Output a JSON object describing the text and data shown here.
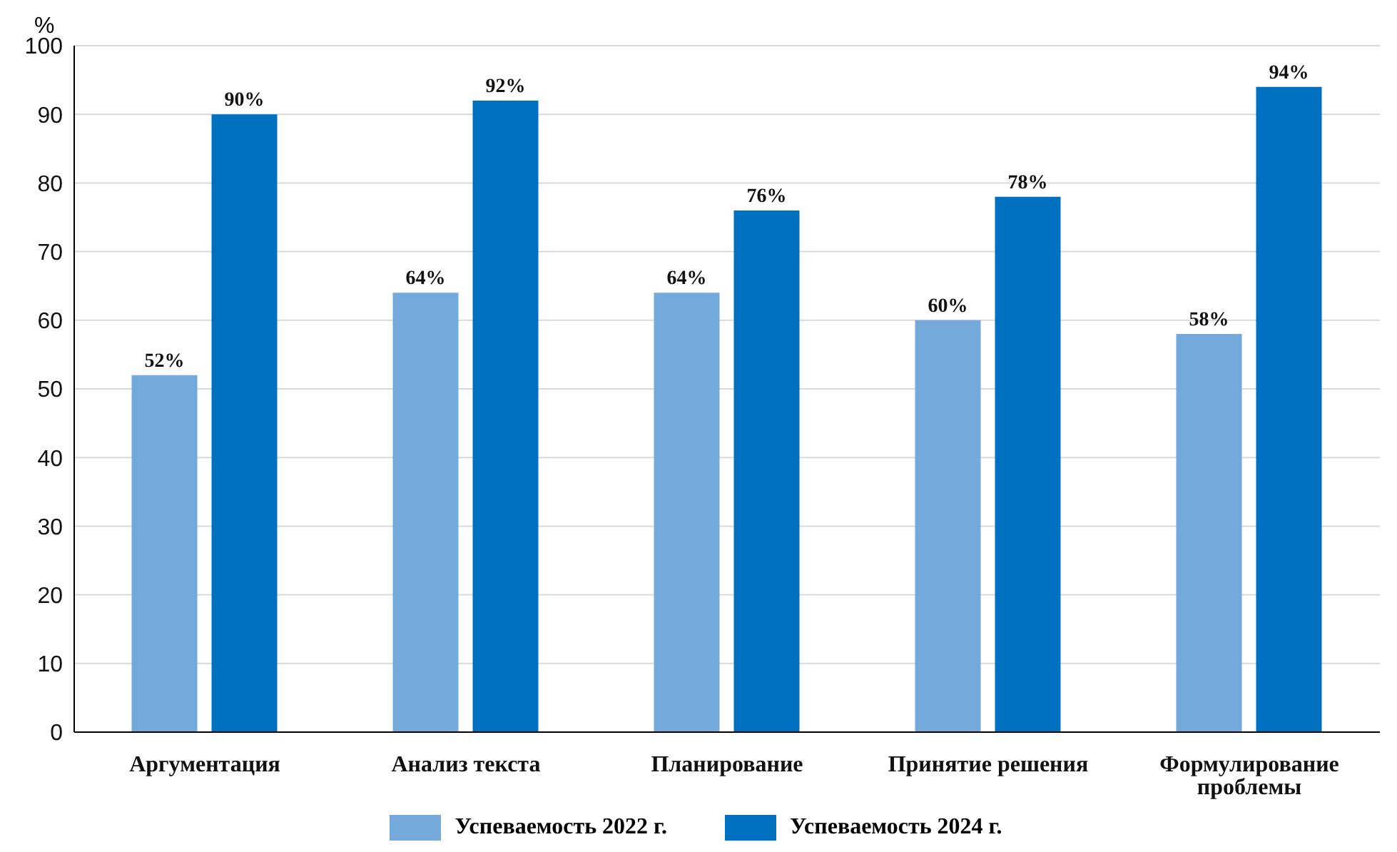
{
  "chart_data": {
    "type": "bar",
    "ylabel": "%",
    "categories": [
      "Аргументация",
      "Анализ текста",
      "Планирование",
      "Принятие решения",
      "Формулирование проблемы"
    ],
    "series": [
      {
        "name": "Успеваемость 2022 г.",
        "color": "#74a9dc",
        "values": [
          52,
          64,
          64,
          60,
          58
        ],
        "value_labels": [
          "52%",
          "64%",
          "64%",
          "60%",
          "58%"
        ]
      },
      {
        "name": "Успеваемость 2024 г.",
        "color": "#0070c0",
        "values": [
          90,
          92,
          76,
          78,
          94
        ],
        "value_labels": [
          "90%",
          "92%",
          "76%",
          "78%",
          "94%"
        ]
      }
    ],
    "ylim": [
      0,
      100
    ],
    "yticks": [
      0,
      10,
      20,
      30,
      40,
      50,
      60,
      70,
      80,
      90,
      100
    ],
    "grid": "y",
    "legend": "bottom"
  }
}
